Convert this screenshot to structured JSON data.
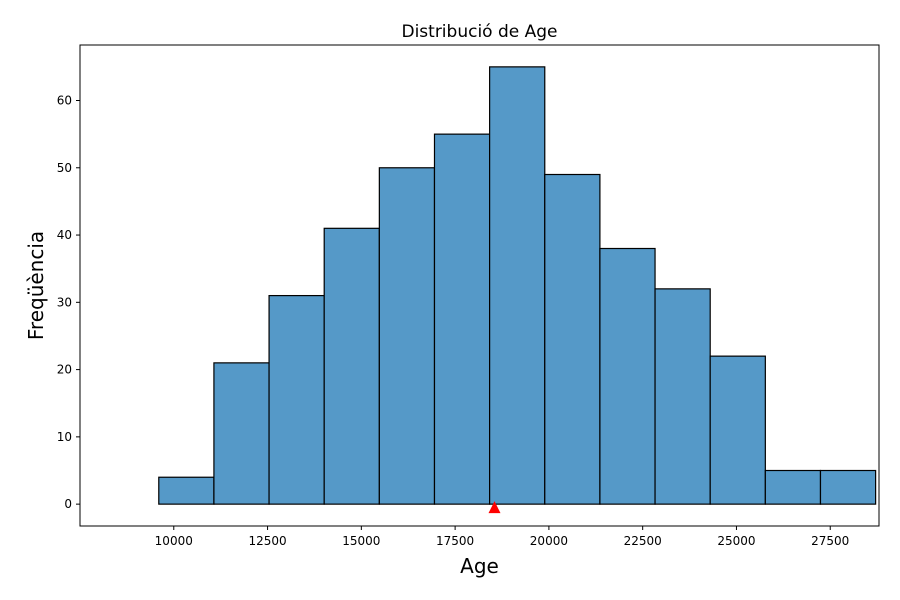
{
  "chart_data": {
    "type": "bar",
    "subtype": "histogram",
    "title": "Distribució de Age",
    "xlabel": "Age",
    "ylabel": "Freqüència",
    "bin_edges": [
      9600,
      11070,
      12540,
      14010,
      15480,
      16950,
      18420,
      19890,
      21360,
      22830,
      24300,
      25770,
      27240,
      28710
    ],
    "values": [
      4,
      21,
      31,
      41,
      50,
      55,
      65,
      49,
      38,
      32,
      22,
      5,
      5
    ],
    "xlim": [
      7500,
      28800
    ],
    "ylim": [
      -3.25,
      68.25
    ],
    "x_ticks": [
      10000,
      12500,
      15000,
      17500,
      20000,
      22500,
      25000,
      27500
    ],
    "y_ticks": [
      0,
      10,
      20,
      30,
      40,
      50,
      60
    ],
    "marker": {
      "shape": "triangle",
      "x": 18550,
      "y": -0.6,
      "color": "#ff0000"
    },
    "grid": false,
    "bar_color": "#5599c8",
    "edge_color": "#000000"
  }
}
